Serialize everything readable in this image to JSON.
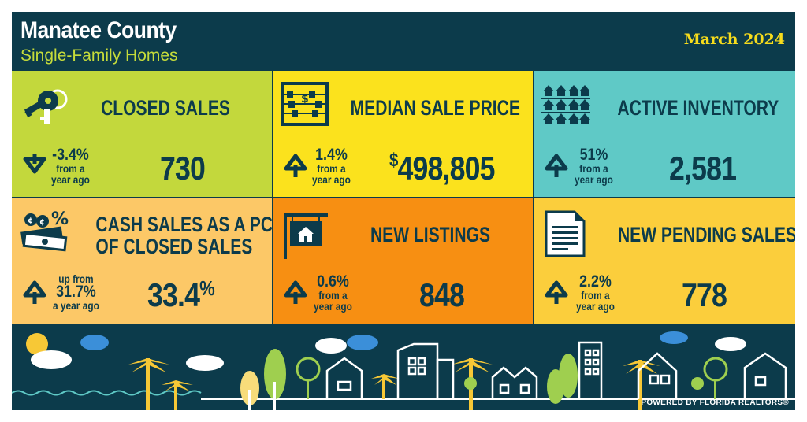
{
  "header": {
    "title": "Manatee County",
    "subtitle": "Single-Family Homes",
    "date": "March 2024"
  },
  "tiles": {
    "closed_sales": {
      "title": "CLOSED SALES",
      "change": "-3.4%",
      "from1": "from a",
      "from2": "year ago",
      "value": "730",
      "direction": "down",
      "color": "#c3d83c"
    },
    "median_price": {
      "title": "MEDIAN SALE PRICE",
      "change": "1.4%",
      "from1": "from a",
      "from2": "year ago",
      "value_symbol": "$",
      "value": "498,805",
      "direction": "up",
      "color": "#fbe21d"
    },
    "active_inventory": {
      "title": "ACTIVE INVENTORY",
      "change": "51%",
      "from1": "from a",
      "from2": "year ago",
      "value": "2,581",
      "direction": "up",
      "color": "#5fc9c6"
    },
    "cash_sales": {
      "title_line1": "CASH SALES AS A PCT.",
      "title_line2": "OF CLOSED SALES",
      "from_top": "up from",
      "change": "31.7%",
      "from2": "a year ago",
      "value": "33.4",
      "value_pct": "%",
      "direction": "up",
      "color": "#fcc867"
    },
    "new_listings": {
      "title": "NEW LISTINGS",
      "change": "0.6%",
      "from1": "from a",
      "from2": "year ago",
      "value": "848",
      "direction": "up",
      "color": "#f78f12"
    },
    "pending_sales": {
      "title": "NEW PENDING SALES",
      "change": "2.2%",
      "from1": "from a",
      "from2": "year ago",
      "value": "778",
      "direction": "up",
      "color": "#fbce3c"
    }
  },
  "icons": {
    "closed_sales": "keys-icon",
    "median_price": "abacus-icon",
    "active_inventory": "houses-grid-icon",
    "cash_sales": "cash-icon",
    "new_listings": "for-sale-sign-icon",
    "pending_sales": "document-icon"
  },
  "footer": {
    "powered": "POWERED BY FLORIDA REALTORS®"
  }
}
